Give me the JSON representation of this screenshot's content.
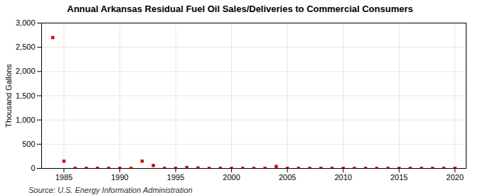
{
  "chart_data": {
    "type": "scatter",
    "title": "Annual Arkansas Residual Fuel Oil Sales/Deliveries to Commercial Consumers",
    "ylabel": "Thousand Gallons",
    "annotations": [
      "Source: U.S. Energy Information Administration"
    ],
    "x": [
      1984,
      1985,
      1986,
      1987,
      1988,
      1989,
      1990,
      1991,
      1992,
      1993,
      1994,
      1995,
      1996,
      1997,
      1998,
      1999,
      2000,
      2001,
      2002,
      2003,
      2004,
      2005,
      2006,
      2007,
      2008,
      2009,
      2010,
      2011,
      2012,
      2013,
      2014,
      2015,
      2016,
      2017,
      2018,
      2019,
      2020
    ],
    "values": [
      2700,
      150,
      1,
      1,
      1,
      1,
      1,
      1,
      150,
      60,
      1,
      1,
      20,
      10,
      1,
      1,
      1,
      1,
      1,
      1,
      40,
      1,
      1,
      1,
      1,
      1,
      1,
      1,
      1,
      1,
      1,
      1,
      1,
      1,
      1,
      1,
      1
    ],
    "color": "#cc0000",
    "marker": "square",
    "xlim": [
      1983,
      2021
    ],
    "ylim": [
      0,
      3000
    ],
    "xticks": [
      1985,
      1990,
      1995,
      2000,
      2005,
      2010,
      2015,
      2020
    ],
    "yticks": [
      0,
      500,
      {
        "value": 1000,
        "label": "1,000"
      },
      {
        "value": 1500,
        "label": "1,500"
      },
      {
        "value": 2000,
        "label": "2,000"
      },
      {
        "value": 2500,
        "label": "2,500"
      },
      {
        "value": 3000,
        "label": "3,000"
      }
    ],
    "grid": true
  }
}
